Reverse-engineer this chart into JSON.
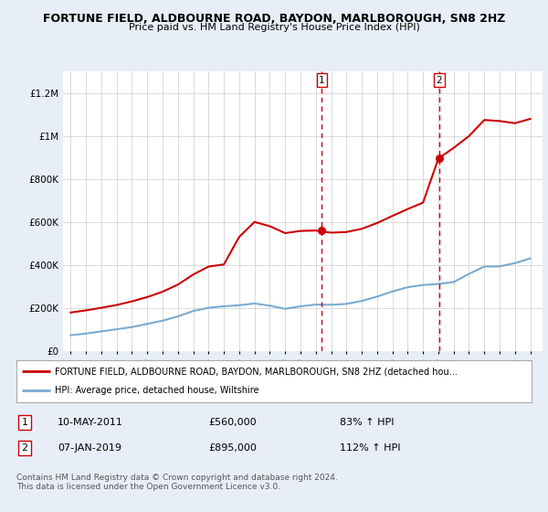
{
  "title": "FORTUNE FIELD, ALDBOURNE ROAD, BAYDON, MARLBOROUGH, SN8 2HZ",
  "subtitle": "Price paid vs. HM Land Registry's House Price Index (HPI)",
  "background_color": "#e8eef8",
  "plot_bg_color": "#ffffff",
  "sale1_date": "10-MAY-2011",
  "sale1_price": 560000,
  "sale1_pct": "83% ↑ HPI",
  "sale2_date": "07-JAN-2019",
  "sale2_price": 895000,
  "sale2_pct": "112% ↑ HPI",
  "legend_line1": "FORTUNE FIELD, ALDBOURNE ROAD, BAYDON, MARLBOROUGH, SN8 2HZ (detached hou…",
  "legend_line2": "HPI: Average price, detached house, Wiltshire",
  "footer": "Contains HM Land Registry data © Crown copyright and database right 2024.\nThis data is licensed under the Open Government Licence v3.0.",
  "ylim": [
    0,
    1300000
  ],
  "yticks": [
    0,
    200000,
    400000,
    600000,
    800000,
    1000000,
    1200000
  ],
  "ytick_labels": [
    "£0",
    "£200K",
    "£400K",
    "£600K",
    "£800K",
    "£1M",
    "£1.2M"
  ],
  "hpi_x": [
    1995,
    1996,
    1997,
    1998,
    1999,
    2000,
    2001,
    2002,
    2003,
    2004,
    2005,
    2006,
    2007,
    2008,
    2009,
    2010,
    2011,
    2012,
    2013,
    2014,
    2015,
    2016,
    2017,
    2018,
    2019,
    2020,
    2021,
    2022,
    2023,
    2024,
    2025
  ],
  "hpi_y": [
    72000,
    80000,
    90000,
    100000,
    110000,
    125000,
    140000,
    160000,
    185000,
    200000,
    207000,
    212000,
    220000,
    210000,
    195000,
    207000,
    215000,
    214000,
    218000,
    232000,
    252000,
    276000,
    296000,
    306000,
    311000,
    320000,
    358000,
    392000,
    393000,
    408000,
    430000
  ],
  "red_x": [
    1995,
    1996,
    1997,
    1998,
    1999,
    2000,
    2001,
    2002,
    2003,
    2004,
    2005,
    2006,
    2007,
    2008,
    2009,
    2010,
    2011,
    2012,
    2013,
    2014,
    2015,
    2016,
    2017,
    2018,
    2019,
    2020,
    2021,
    2022,
    2023,
    2024,
    2025
  ],
  "red_y": [
    178000,
    188000,
    200000,
    213000,
    230000,
    250000,
    275000,
    308000,
    355000,
    392000,
    402000,
    530000,
    600000,
    580000,
    548000,
    558000,
    560000,
    550000,
    553000,
    568000,
    595000,
    628000,
    660000,
    690000,
    895000,
    945000,
    1000000,
    1075000,
    1070000,
    1060000,
    1080000
  ],
  "sale1_x": 2011.4,
  "sale2_x": 2019.05,
  "line_color_red": "#cc0000",
  "line_color_blue": "#7aaad0",
  "dashed_line_color": "#cc0000"
}
